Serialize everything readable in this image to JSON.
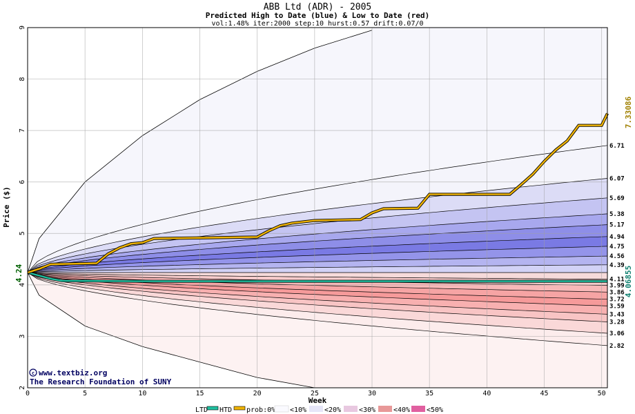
{
  "chart_data": {
    "type": "area",
    "title": "ABB Ltd (ADR) - 2005",
    "subtitle": "Predicted High to Date (blue) &  Low to Date (red)",
    "params": "vol:1.48% iter:2000 step:10 hurst:0.57 drift:0.07/0",
    "xlabel": "Week",
    "ylabel": "Price ($)",
    "xlim": [
      0,
      50.5
    ],
    "ylim": [
      2,
      9
    ],
    "x_ticks": [
      "0",
      "5",
      "10",
      "15",
      "20",
      "25",
      "30",
      "35",
      "40",
      "45",
      "50"
    ],
    "y_ticks": [
      "2",
      "3",
      "4",
      "5",
      "6",
      "7",
      "8",
      "9"
    ],
    "grid": true,
    "start_price": 4.24,
    "start_label": "4.24",
    "htd_final_label": "7.33086",
    "ltd_final_label": "4.06855",
    "right_labels": [
      "6.71",
      "6.07",
      "5.69",
      "5.38",
      "5.17",
      "4.94",
      "4.75",
      "4.56",
      "4.39",
      "4.11",
      "3.99",
      "3.86",
      "3.72",
      "3.59",
      "3.43",
      "3.28",
      "3.06",
      "2.82"
    ],
    "high_band_ends": [
      6.71,
      6.07,
      5.69,
      5.38,
      5.17,
      4.94,
      4.75,
      4.56,
      4.39,
      4.24
    ],
    "low_band_ends": [
      4.24,
      4.11,
      3.99,
      3.86,
      3.72,
      3.59,
      3.43,
      3.28,
      3.06,
      2.82
    ],
    "high_max_points": [
      [
        0,
        4.24
      ],
      [
        1,
        4.9
      ],
      [
        5,
        6.0
      ],
      [
        10,
        6.9
      ],
      [
        15,
        7.6
      ],
      [
        20,
        8.15
      ],
      [
        25,
        8.6
      ],
      [
        30,
        8.95
      ]
    ],
    "low_min_points": [
      [
        0,
        4.24
      ],
      [
        1,
        3.8
      ],
      [
        5,
        3.2
      ],
      [
        10,
        2.8
      ],
      [
        15,
        2.5
      ],
      [
        20,
        2.2
      ],
      [
        25,
        2.0
      ]
    ],
    "htd_series": [
      [
        0,
        4.24
      ],
      [
        1,
        4.31
      ],
      [
        2,
        4.4
      ],
      [
        6,
        4.42
      ],
      [
        7,
        4.6
      ],
      [
        8,
        4.72
      ],
      [
        9,
        4.8
      ],
      [
        10,
        4.82
      ],
      [
        11,
        4.9
      ],
      [
        20,
        4.93
      ],
      [
        21,
        5.05
      ],
      [
        22,
        5.15
      ],
      [
        23,
        5.2
      ],
      [
        25,
        5.25
      ],
      [
        29,
        5.27
      ],
      [
        30,
        5.4
      ],
      [
        31,
        5.48
      ],
      [
        34,
        5.49
      ],
      [
        35,
        5.76
      ],
      [
        42,
        5.76
      ],
      [
        43,
        5.95
      ],
      [
        44,
        6.15
      ],
      [
        45,
        6.4
      ],
      [
        46,
        6.62
      ],
      [
        47,
        6.8
      ],
      [
        48,
        7.1
      ],
      [
        50,
        7.1
      ],
      [
        50.5,
        7.33
      ]
    ],
    "ltd_series": [
      [
        0,
        4.24
      ],
      [
        1,
        4.18
      ],
      [
        2,
        4.12
      ],
      [
        3,
        4.08
      ],
      [
        10,
        4.07
      ],
      [
        50.5,
        4.07
      ]
    ],
    "legend": {
      "ltd": "LTD",
      "htd": "HTD",
      "prob_label": "prob:0%",
      "bins": [
        "<10%",
        "<20%",
        "<30%",
        "<40%",
        "<50%"
      ]
    },
    "credit_line1": "www.textbiz.org",
    "credit_line2": "The Research Foundation of SUNY",
    "colors": {
      "htd": "#f0b400",
      "ltd": "#20c0a0",
      "high_bands": [
        "#f4f4fb",
        "#dcdcf6",
        "#c4c4f2",
        "#a8a8ee",
        "#8e8ee8",
        "#7a7ae4",
        "#9494ea",
        "#b4b4f0",
        "#d2d2f6"
      ],
      "low_bands": [
        "#f6dada",
        "#f8cccc",
        "#f8b8b8",
        "#f6a4a4",
        "#f69a9a",
        "#f8b0b0",
        "#f8c4c4",
        "#fad8d8",
        "#fcecec"
      ],
      "outer_high": "#f6f6fc",
      "outer_low": "#fdf2f2",
      "grid": "#a0a0a0"
    }
  }
}
